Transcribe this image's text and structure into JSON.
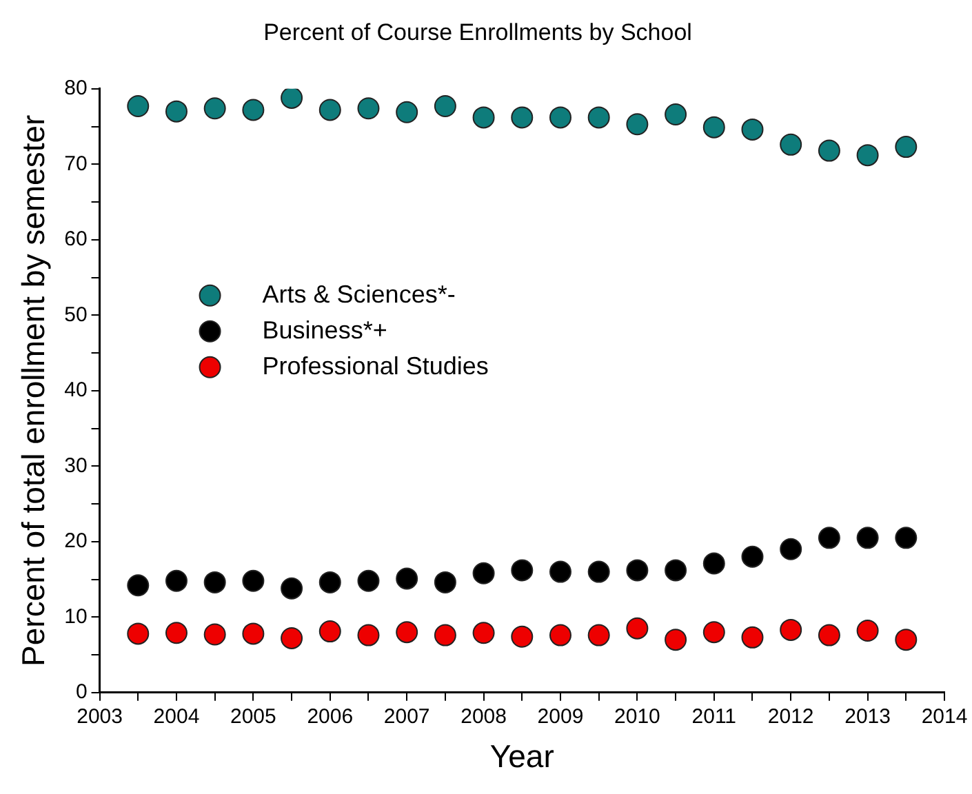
{
  "chart_data": {
    "type": "scatter",
    "title": "Percent of Course Enrollments by School",
    "xlabel": "Year",
    "ylabel": "Percent of total enrollment by semester",
    "x": [
      2003.5,
      2004,
      2004.5,
      2005,
      2005.5,
      2006,
      2006.5,
      2007,
      2007.5,
      2008,
      2008.5,
      2009,
      2009.5,
      2010,
      2010.5,
      2011,
      2011.5,
      2012,
      2012.5,
      2013,
      2013.5
    ],
    "series": [
      {
        "name": "Arts & Sciences*-",
        "color": "#0e7c7b",
        "values": [
          77.7,
          77,
          77.4,
          77.2,
          78.8,
          77.2,
          77.4,
          76.9,
          77.7,
          76.2,
          76.2,
          76.2,
          76.2,
          75.3,
          76.6,
          74.9,
          74.6,
          72.6,
          71.8,
          71.2,
          72.3
        ]
      },
      {
        "name": "Business*+",
        "color": "#000000",
        "values": [
          14.2,
          14.8,
          14.6,
          14.8,
          13.8,
          14.6,
          14.8,
          15.1,
          14.6,
          15.8,
          16.2,
          16.0,
          16.0,
          16.2,
          16.2,
          17.1,
          18.0,
          19.0,
          20.5,
          20.5,
          20.5
        ]
      },
      {
        "name": "Professional Studies",
        "color": "#ee0000",
        "values": [
          7.8,
          7.9,
          7.7,
          7.8,
          7.2,
          8.1,
          7.6,
          8.0,
          7.6,
          7.9,
          7.4,
          7.6,
          7.6,
          8.5,
          7.0,
          8.0,
          7.3,
          8.3,
          7.6,
          8.2,
          7.0
        ]
      }
    ],
    "xlim": [
      2003,
      2014
    ],
    "xticks": [
      2003,
      {
        "value": 2003.5,
        "label": null
      },
      2004,
      {
        "value": 2004.5,
        "label": null
      },
      2005,
      {
        "value": 2005.5,
        "label": null
      },
      2006,
      {
        "value": 2006.5,
        "label": null
      },
      2007,
      {
        "value": 2007.5,
        "label": null
      },
      2008,
      {
        "value": 2008.5,
        "label": null
      },
      2009,
      {
        "value": 2009.5,
        "label": null
      },
      2010,
      {
        "value": 2010.5,
        "label": null
      },
      2011,
      {
        "value": 2011.5,
        "label": null
      },
      2012,
      {
        "value": 2012.5,
        "label": null
      },
      2013,
      {
        "value": 2013.5,
        "label": null
      },
      2014
    ],
    "ylim": [
      0,
      80
    ],
    "yticks": [
      0,
      {
        "value": 5,
        "label": null
      },
      10,
      {
        "value": 15,
        "label": null
      },
      20,
      {
        "value": 25,
        "label": null
      },
      30,
      {
        "value": 35,
        "label": null
      },
      40,
      {
        "value": 45,
        "label": null
      },
      50,
      {
        "value": 55,
        "label": null
      },
      60,
      {
        "value": 65,
        "label": null
      },
      70,
      {
        "value": 75,
        "label": null
      },
      80
    ],
    "grid": false,
    "legend": "center left",
    "marker": "circle"
  }
}
